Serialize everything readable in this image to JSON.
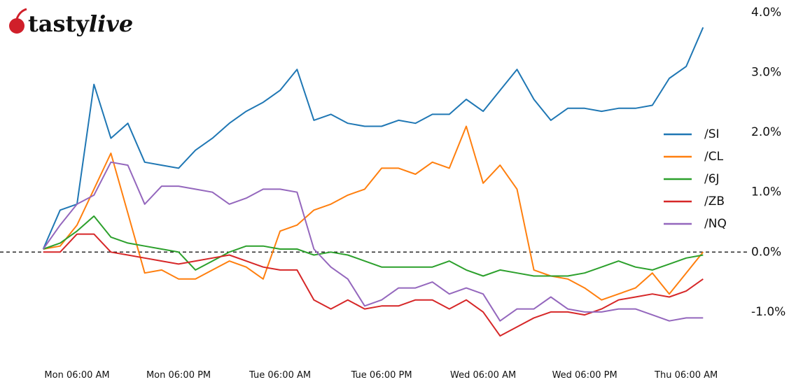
{
  "logo": {
    "bold": "tasty",
    "italic": "live"
  },
  "chart_data": {
    "type": "line",
    "categories": [
      null,
      null,
      "Mon 06:00 AM",
      null,
      null,
      null,
      null,
      null,
      "Mon 06:00 PM",
      null,
      null,
      null,
      null,
      null,
      "Tue 06:00 AM",
      null,
      null,
      null,
      null,
      null,
      "Tue 06:00 PM",
      null,
      null,
      null,
      null,
      null,
      "Wed 06:00 AM",
      null,
      null,
      null,
      null,
      null,
      "Wed 06:00 PM",
      null,
      null,
      null,
      null,
      null,
      "Thu 06:00 AM",
      null
    ],
    "series": [
      {
        "name": "/SI",
        "color": "#1f77b4",
        "values": [
          0.05,
          0.7,
          0.8,
          2.8,
          1.9,
          2.15,
          1.5,
          1.45,
          1.4,
          1.7,
          1.9,
          2.15,
          2.35,
          2.5,
          2.7,
          3.05,
          2.2,
          2.3,
          2.15,
          2.1,
          2.1,
          2.2,
          2.15,
          2.3,
          2.3,
          2.55,
          2.35,
          2.7,
          3.05,
          2.55,
          2.2,
          2.4,
          2.4,
          2.35,
          2.4,
          2.4,
          2.45,
          2.9,
          3.1,
          3.75
        ]
      },
      {
        "name": "/CL",
        "color": "#ff7f0e",
        "values": [
          0.05,
          0.1,
          0.45,
          1.05,
          1.65,
          0.65,
          -0.35,
          -0.3,
          -0.45,
          -0.45,
          -0.3,
          -0.15,
          -0.25,
          -0.45,
          0.35,
          0.45,
          0.7,
          0.8,
          0.95,
          1.05,
          1.4,
          1.4,
          1.3,
          1.5,
          1.4,
          2.1,
          1.15,
          1.45,
          1.05,
          -0.3,
          -0.4,
          -0.45,
          -0.6,
          -0.8,
          -0.7,
          -0.6,
          -0.35,
          -0.7,
          -0.35,
          0.0
        ]
      },
      {
        "name": "/6J",
        "color": "#2ca02c",
        "values": [
          0.05,
          0.15,
          0.35,
          0.6,
          0.25,
          0.15,
          0.1,
          0.05,
          0,
          -0.3,
          -0.15,
          0,
          0.1,
          0.1,
          0.05,
          0.05,
          -0.05,
          0,
          -0.05,
          -0.15,
          -0.25,
          -0.25,
          -0.25,
          -0.25,
          -0.15,
          -0.3,
          -0.4,
          -0.3,
          -0.35,
          -0.4,
          -0.4,
          -0.4,
          -0.35,
          -0.25,
          -0.15,
          -0.25,
          -0.3,
          -0.2,
          -0.1,
          -0.05
        ]
      },
      {
        "name": "/ZB",
        "color": "#d62728",
        "values": [
          0.0,
          0,
          0.3,
          0.3,
          0,
          -0.05,
          -0.1,
          -0.15,
          -0.2,
          -0.15,
          -0.1,
          -0.05,
          -0.15,
          -0.25,
          -0.3,
          -0.3,
          -0.8,
          -0.95,
          -0.8,
          -0.95,
          -0.9,
          -0.9,
          -0.8,
          -0.8,
          -0.95,
          -0.8,
          -1.0,
          -1.4,
          -1.25,
          -1.1,
          -1.0,
          -1.0,
          -1.05,
          -0.95,
          -0.8,
          -0.75,
          -0.7,
          -0.75,
          -0.65,
          -0.45
        ]
      },
      {
        "name": "/NQ",
        "color": "#9467bd",
        "values": [
          0.05,
          0.45,
          0.8,
          0.95,
          1.5,
          1.45,
          0.8,
          1.1,
          1.1,
          1.05,
          1.0,
          0.8,
          0.9,
          1.05,
          1.05,
          1.0,
          0.05,
          -0.25,
          -0.45,
          -0.9,
          -0.8,
          -0.6,
          -0.6,
          -0.5,
          -0.7,
          -0.6,
          -0.7,
          -1.15,
          -0.95,
          -0.95,
          -0.75,
          -0.95,
          -1.0,
          -1.0,
          -0.95,
          -0.95,
          -1.05,
          -1.15,
          -1.1,
          -1.1
        ]
      }
    ],
    "ylim": [
      -1.65,
      4.15
    ],
    "yticks": [
      {
        "value": -1,
        "label": "-1.0%"
      },
      {
        "value": 0,
        "label": "0.0%"
      },
      {
        "value": 1,
        "label": "1.0%"
      },
      {
        "value": 2,
        "label": "2.0%"
      },
      {
        "value": 3,
        "label": "3.0%"
      },
      {
        "value": 4,
        "label": "4.0%"
      }
    ],
    "hline": 0,
    "legend": "center right",
    "grid": false
  }
}
